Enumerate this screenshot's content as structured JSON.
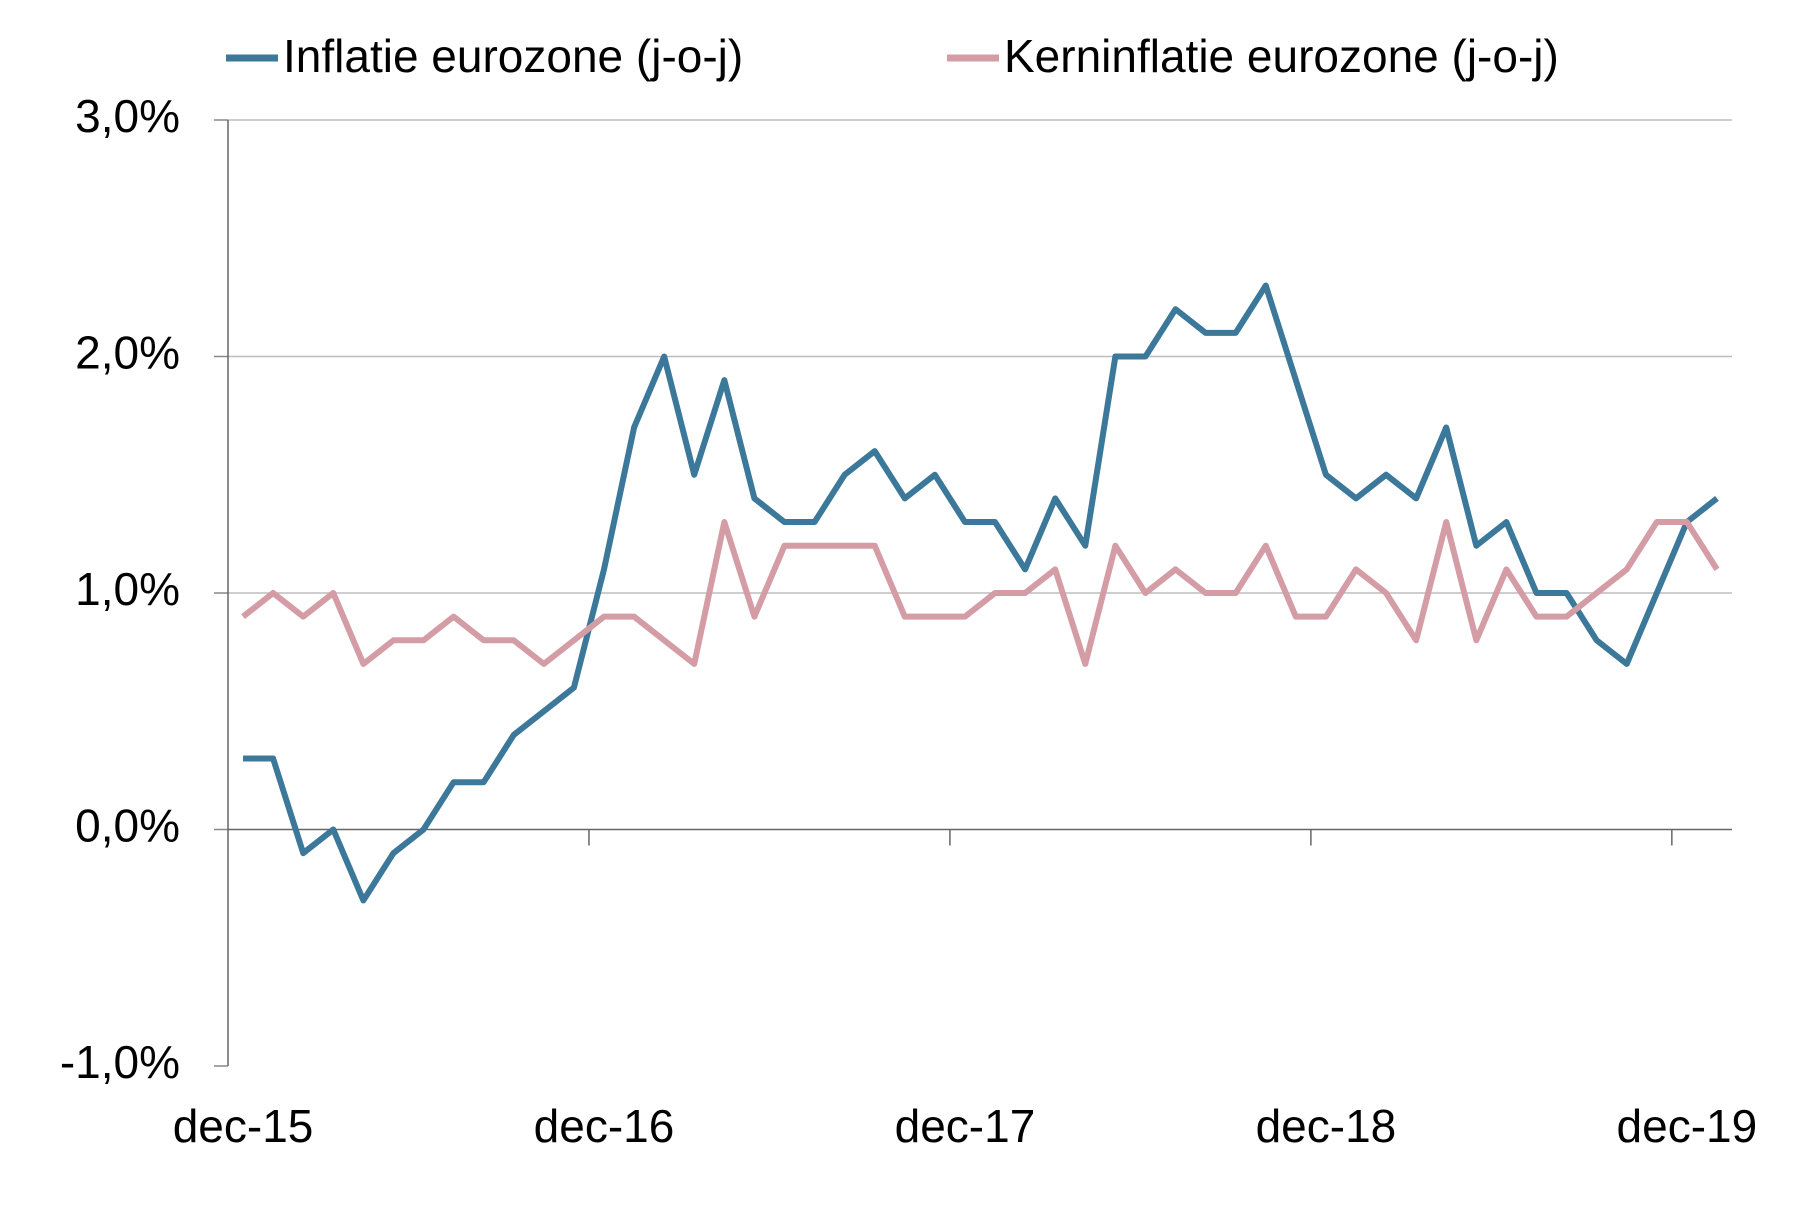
{
  "chart_data": {
    "type": "line",
    "categories": [
      "dec-15",
      null,
      null,
      null,
      null,
      null,
      null,
      null,
      null,
      null,
      null,
      null,
      "dec-16",
      null,
      null,
      null,
      null,
      null,
      null,
      null,
      null,
      null,
      null,
      null,
      "dec-17",
      null,
      null,
      null,
      null,
      null,
      null,
      null,
      null,
      null,
      null,
      null,
      "dec-18",
      null,
      null,
      null,
      null,
      null,
      null,
      null,
      null,
      null,
      null,
      null,
      "dec-19",
      null
    ],
    "series": [
      {
        "name": "Inflatie eurozone (j-o-j)",
        "color": "#3b7899",
        "values": [
          0.3,
          0.3,
          -0.1,
          0.0,
          -0.3,
          -0.1,
          0.0,
          0.2,
          0.2,
          0.4,
          0.5,
          0.6,
          1.1,
          1.7,
          2.0,
          1.5,
          1.9,
          1.4,
          1.3,
          1.3,
          1.5,
          1.6,
          1.4,
          1.5,
          1.3,
          1.3,
          1.1,
          1.4,
          1.2,
          2.0,
          2.0,
          2.2,
          2.1,
          2.1,
          2.3,
          1.9,
          1.5,
          1.4,
          1.5,
          1.4,
          1.7,
          1.2,
          1.3,
          1.0,
          1.0,
          0.8,
          0.7,
          1.0,
          1.3,
          1.4
        ]
      },
      {
        "name": "Kerninflatie eurozone (j-o-j)",
        "color": "#d49da6",
        "values": [
          0.9,
          1.0,
          0.9,
          1.0,
          0.7,
          0.8,
          0.8,
          0.9,
          0.8,
          0.8,
          0.7,
          0.8,
          0.9,
          0.9,
          0.8,
          0.7,
          1.3,
          0.9,
          1.2,
          1.2,
          1.2,
          1.2,
          0.9,
          0.9,
          0.9,
          1.0,
          1.0,
          1.1,
          0.7,
          1.2,
          1.0,
          1.1,
          1.0,
          1.0,
          1.2,
          0.9,
          0.9,
          1.1,
          1.0,
          0.8,
          1.3,
          0.8,
          1.1,
          0.9,
          0.9,
          1.0,
          1.1,
          1.3,
          1.3,
          1.1
        ]
      }
    ],
    "ylim": [
      -1,
      3
    ],
    "yticks": [
      {
        "value": -1,
        "label": "-1,0%"
      },
      {
        "value": 0,
        "label": "0,0%"
      },
      {
        "value": 1,
        "label": "1,0%"
      },
      {
        "value": 2,
        "label": "2,0%"
      },
      {
        "value": 3,
        "label": "3,0%"
      }
    ],
    "grid": true
  }
}
